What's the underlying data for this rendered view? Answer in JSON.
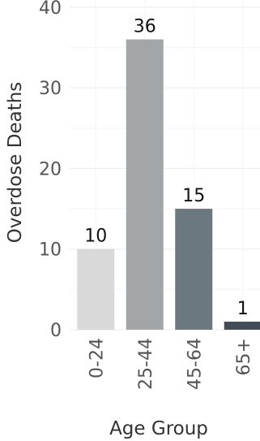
{
  "chart_data": {
    "type": "bar",
    "title": "",
    "xlabel": "Age Group",
    "ylabel": "Overdose Deaths",
    "categories": [
      "0-24",
      "25-44",
      "45-64",
      "65+"
    ],
    "values": [
      10,
      36,
      15,
      1
    ],
    "data_labels": [
      "10",
      "36",
      "15",
      "1"
    ],
    "colors": [
      "#d9d9d9",
      "#a2a6a9",
      "#6c787f",
      "#434b56"
    ],
    "ylim": [
      0,
      40
    ],
    "yticks": [
      0,
      10,
      20,
      30,
      40
    ],
    "ytick_labels": [
      "0",
      "10",
      "20",
      "30",
      "40"
    ],
    "grid": true,
    "legend": "none"
  }
}
